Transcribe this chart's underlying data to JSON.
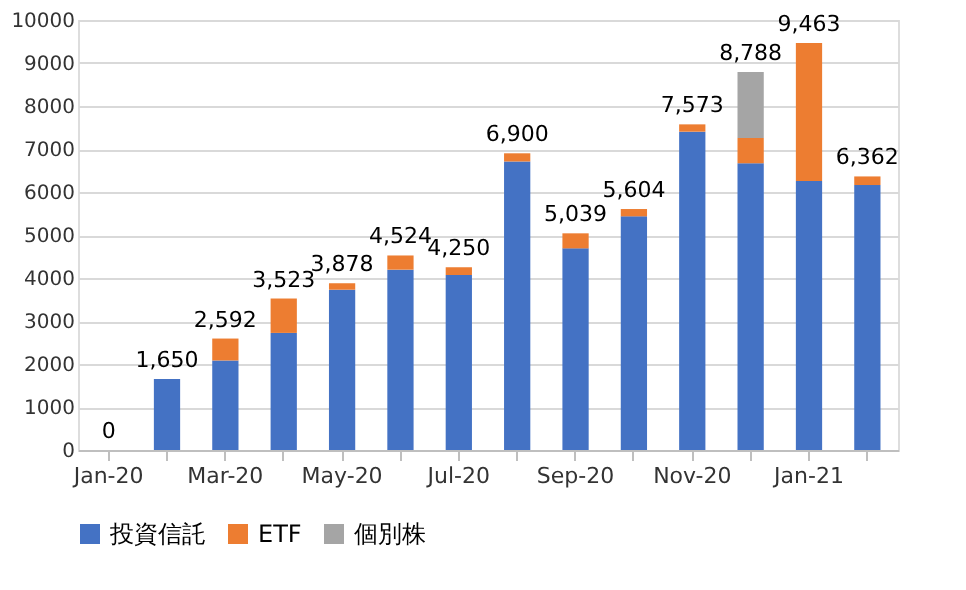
{
  "chart_data": {
    "type": "bar",
    "stacked": true,
    "categories": [
      "Jan-20",
      null,
      "Mar-20",
      null,
      "May-20",
      null,
      "Jul-20",
      null,
      "Sep-20",
      null,
      "Nov-20",
      null,
      "Jan-21",
      null
    ],
    "series": [
      {
        "name": "投資信託",
        "color": "#4472c4",
        "values": [
          0,
          1650,
          2082,
          2723,
          3728,
          4194,
          4070,
          6710,
          4689,
          5434,
          7403,
          6668,
          6253,
          6162
        ]
      },
      {
        "name": "ETF",
        "color": "#ed7d31",
        "values": [
          0,
          0,
          510,
          800,
          150,
          330,
          180,
          190,
          350,
          170,
          170,
          590,
          3210,
          200
        ]
      },
      {
        "name": "個別株",
        "color": "#a5a5a5",
        "values": [
          0,
          0,
          0,
          0,
          0,
          0,
          0,
          0,
          0,
          0,
          0,
          1530,
          0,
          0
        ]
      }
    ],
    "totals": [
      "0",
      "1,650",
      "2,592",
      "3,523",
      "3,878",
      "4,524",
      "4,250",
      "6,900",
      "5,039",
      "5,604",
      "7,573",
      "8,788",
      "9,463",
      "6,362"
    ],
    "ylim": [
      0,
      10000
    ],
    "yticks": [
      0,
      1000,
      2000,
      3000,
      4000,
      5000,
      6000,
      7000,
      8000,
      9000,
      10000
    ],
    "grid": "y",
    "legend": "bottom"
  }
}
